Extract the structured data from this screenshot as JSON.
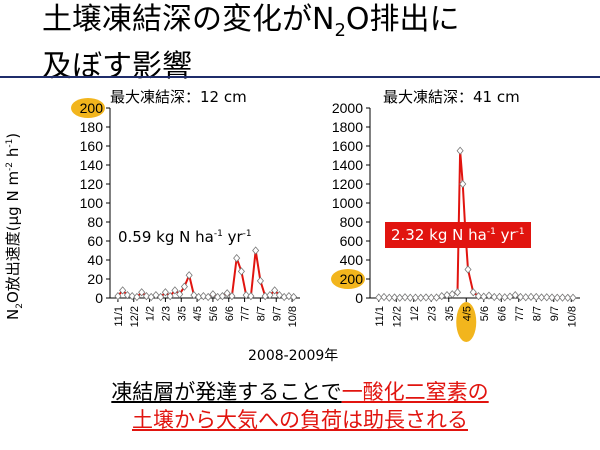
{
  "title": {
    "line1_pre": "土壌凍結深の変化がN",
    "line1_sub": "2",
    "line1_post": "O排出に",
    "line2": "及ぼす影響"
  },
  "y_axis_label": {
    "pre": "N",
    "sub": "2",
    "mid": "O放出速度(μg N m",
    "sup1": "-2",
    "mid2": " h",
    "sup2": "-1",
    "post": ")"
  },
  "x_axis_label": "2008-2009年",
  "colors": {
    "accent_red": "#e1140f",
    "highlight_yellow": "#f2b51d",
    "rule_blue": "#1f2d6b",
    "series_line": "#e1140f",
    "marker": "#ffffff"
  },
  "conclusion": {
    "line1_a": "凍結層が発達することで",
    "line1_b": "一酸化二窒素の",
    "line2": "土壌から大気への負荷は助長される"
  },
  "chart_data": [
    {
      "type": "line",
      "title": "最大凍結深：12 cm",
      "annotation": {
        "pre": "0.59 kg N ha",
        "sup1": "-1",
        "mid": " yr",
        "sup2": "-1"
      },
      "yticks": [
        0,
        20,
        40,
        60,
        80,
        100,
        120,
        140,
        160,
        180,
        200
      ],
      "highlight_ytick": 200,
      "ylim": [
        0,
        200
      ],
      "categories": [
        "11/1",
        "12/2",
        "1/2",
        "2/3",
        "3/5",
        "4/5",
        "5/6",
        "6/6",
        "7/7",
        "8/7",
        "9/7",
        "10/8"
      ],
      "x": [
        0.0,
        0.3,
        0.6,
        0.9,
        1.2,
        1.5,
        1.8,
        2.1,
        2.4,
        2.7,
        3.0,
        3.3,
        3.6,
        3.9,
        4.2,
        4.5,
        4.8,
        5.1,
        5.4,
        5.7,
        6.0,
        6.3,
        6.6,
        6.9,
        7.2,
        7.5,
        7.8,
        8.1,
        8.4,
        8.7,
        9.0,
        9.3,
        9.6,
        9.9,
        10.2,
        10.5,
        10.8,
        11.1
      ],
      "values": [
        2,
        8,
        3,
        2,
        1,
        6,
        2,
        1,
        3,
        1,
        6,
        2,
        8,
        4,
        12,
        24,
        3,
        1,
        2,
        1,
        4,
        1,
        2,
        5,
        2,
        42,
        28,
        3,
        2,
        50,
        18,
        2,
        3,
        8,
        3,
        1,
        2,
        1
      ]
    },
    {
      "type": "line",
      "title": "最大凍結深：41 cm",
      "annotation": {
        "pre": "2.32 kg N ha",
        "sup1": "-1",
        "mid": " yr",
        "sup2": "-1"
      },
      "yticks": [
        0,
        200,
        400,
        600,
        800,
        1000,
        1200,
        1400,
        1600,
        1800,
        2000
      ],
      "highlight_ytick": 200,
      "highlight_xtick": "4/5",
      "ylim": [
        0,
        2000
      ],
      "categories": [
        "11/1",
        "12/2",
        "1/2",
        "2/3",
        "3/5",
        "4/5",
        "5/6",
        "6/6",
        "7/7",
        "8/7",
        "9/7",
        "10/8"
      ],
      "x": [
        0.0,
        0.3,
        0.6,
        0.9,
        1.2,
        1.5,
        1.8,
        2.1,
        2.4,
        2.7,
        3.0,
        3.3,
        3.6,
        3.9,
        4.2,
        4.5,
        4.65,
        4.8,
        4.95,
        5.1,
        5.4,
        5.7,
        6.0,
        6.3,
        6.6,
        6.9,
        7.2,
        7.5,
        7.8,
        8.1,
        8.4,
        8.7,
        9.0,
        9.3,
        9.6,
        9.9,
        10.2,
        10.5,
        10.8,
        11.1
      ],
      "values": [
        5,
        10,
        3,
        6,
        2,
        8,
        3,
        4,
        2,
        6,
        3,
        5,
        20,
        30,
        40,
        60,
        1550,
        1200,
        700,
        300,
        60,
        20,
        15,
        25,
        10,
        12,
        8,
        15,
        30,
        10,
        8,
        12,
        10,
        6,
        8,
        5,
        3,
        4,
        2,
        3
      ]
    }
  ]
}
